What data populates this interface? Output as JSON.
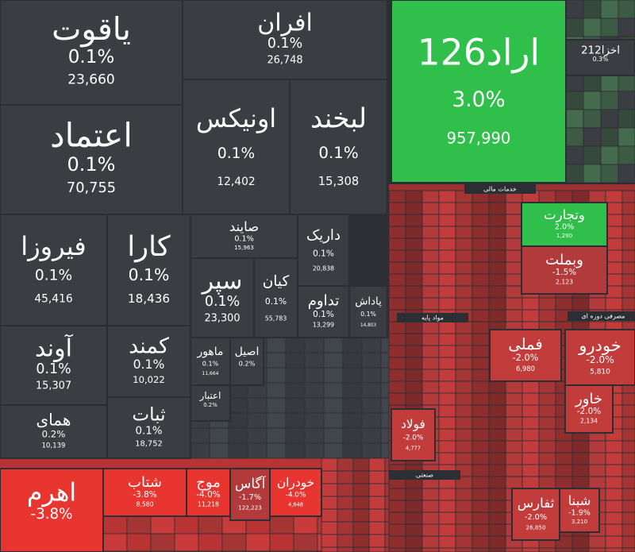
{
  "chart_data": {
    "type": "treemap",
    "categories": [
      "یاقوت",
      "افران",
      "اعتماد",
      "اونیکس",
      "لبخند",
      "فیروزا",
      "کارا",
      "صایند",
      "داریک",
      "سپر",
      "کیان",
      "تداوم",
      "پاداش",
      "آوند",
      "کمند",
      "همای",
      "ثبات",
      "ماهور",
      "اصیل",
      "اعتبار",
      "اراد126",
      "اخزا212",
      "وتجارت",
      "وبملت",
      "فملی",
      "خودرو",
      "خاور",
      "فولاد",
      "ثفارس",
      "شبنا",
      "اهرم",
      "شتاب",
      "موج",
      "آگاس",
      "خودران"
    ],
    "values": [
      0.1,
      0.1,
      0.1,
      0.1,
      0.1,
      0.1,
      0.1,
      0.1,
      0.1,
      0.1,
      0.1,
      0.1,
      0.1,
      0.1,
      0.1,
      0.2,
      0.1,
      0.1,
      0.2,
      0.2,
      3.0,
      0.3,
      2.0,
      -1.5,
      -2.0,
      -2.0,
      -2.0,
      -2.0,
      -2.0,
      -1.9,
      -3.8,
      -3.8,
      -4.0,
      -1.7,
      -4.0
    ],
    "value_labels": [
      "0.1%",
      "0.1%",
      "0.1%",
      "0.1%",
      "0.1%",
      "0.1%",
      "0.1%",
      "0.1%",
      "0.1%",
      "0.1%",
      "0.1%",
      "0.1%",
      "0.1%",
      "0.1%",
      "0.1%",
      "0.2%",
      "0.1%",
      "0.1%",
      "0.2%",
      "0.2%",
      "3.0%",
      "0.3%",
      "2.0%",
      "-1.5%",
      "-2.0%",
      "-2.0%",
      "-2.0%",
      "-2.0%",
      "-2.0%",
      "-1.9%",
      "-3.8%",
      "-3.8%",
      "-4.0%",
      "-1.7%",
      "-4.0%"
    ],
    "volumes": [
      23660,
      26748,
      70755,
      12402,
      15308,
      45416,
      18436,
      15963,
      20838,
      23300,
      55783,
      13299,
      14803,
      15307,
      10022,
      10139,
      18752,
      11664,
      null,
      null,
      957990,
      null,
      1290,
      2123,
      6980,
      5810,
      2134,
      4777,
      26850,
      3210,
      null,
      8580,
      11218,
      122223,
      4648
    ],
    "volume_labels": [
      "23,660",
      "26,748",
      "70,755",
      "12,402",
      "15,308",
      "45,416",
      "18,436",
      "15,963",
      "20,838",
      "23,300",
      "55,783",
      "13,299",
      "14,803",
      "15,307",
      "10,022",
      "10,139",
      "18,752",
      "11,664",
      null,
      null,
      "957,990",
      null,
      "1,290",
      "2,123",
      "6,980",
      "5,810",
      "2,134",
      "4,777",
      "26,850",
      "3,210",
      null,
      "8,580",
      "11,218",
      "122,223",
      "4,648"
    ],
    "sectors": [
      "خدمات مالی",
      "مواد پایه",
      "مصرفی دوره ای",
      "صنعتی"
    ]
  }
}
